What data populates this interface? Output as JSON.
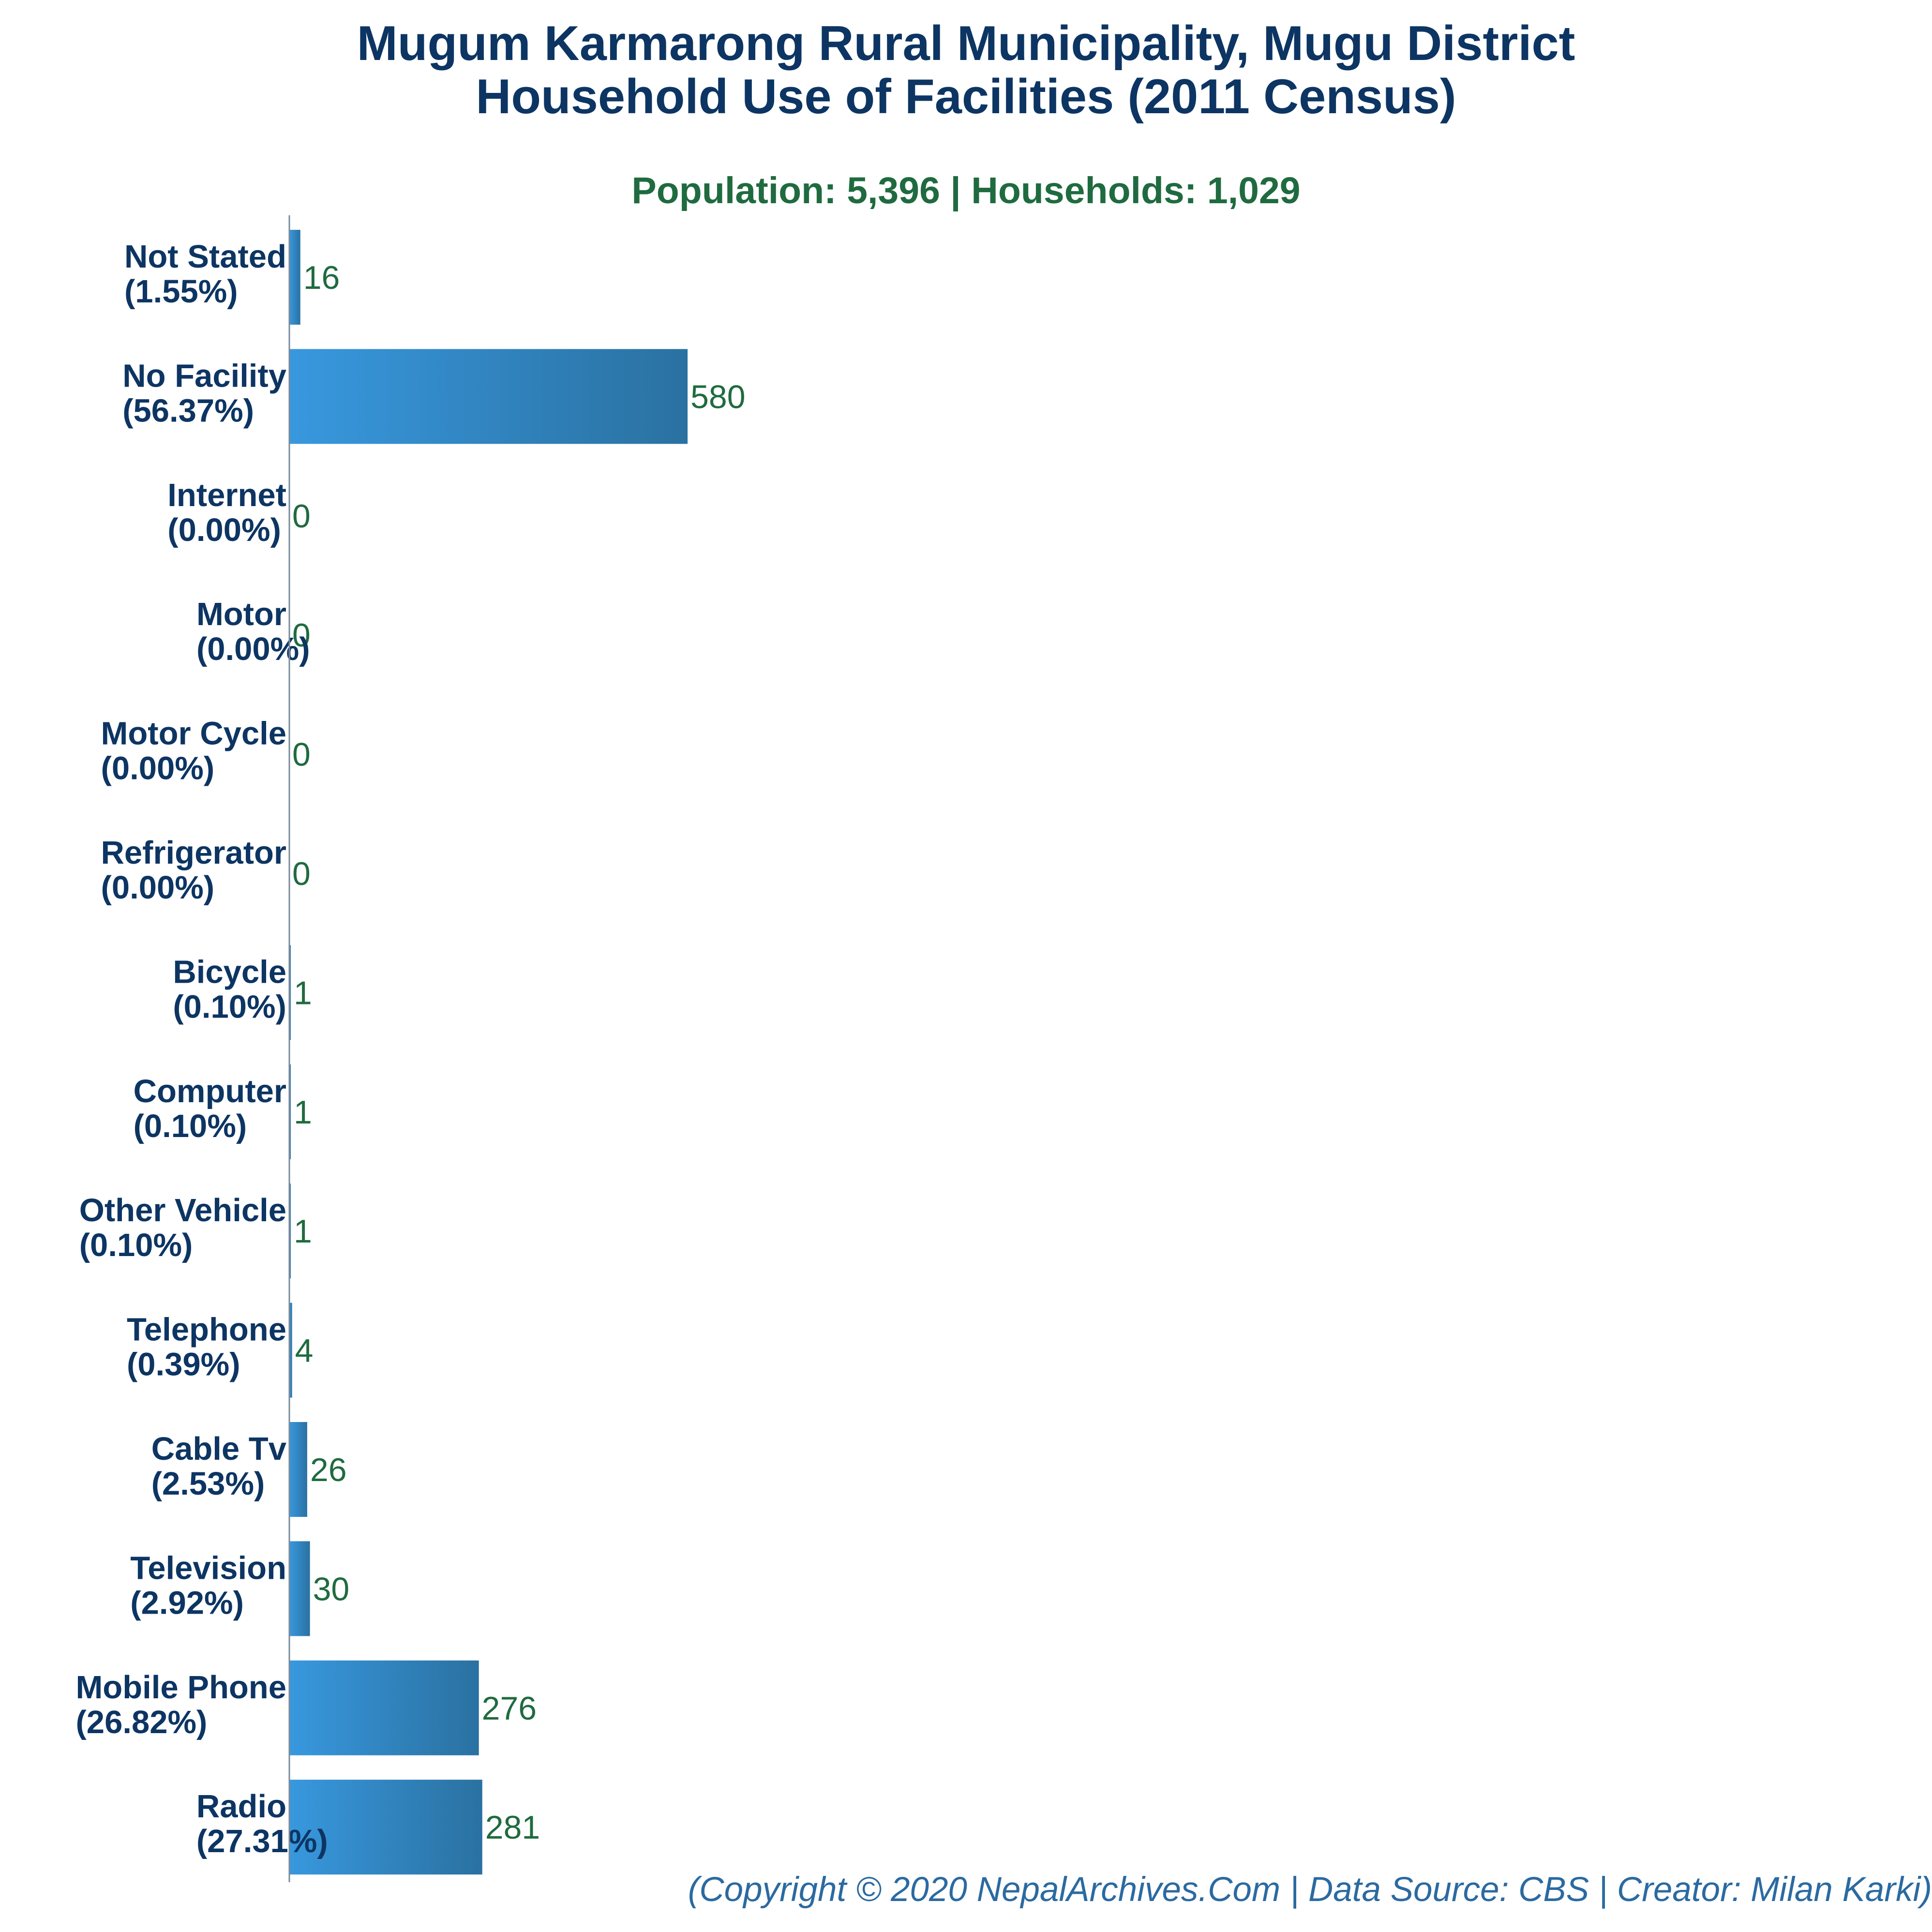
{
  "title_line1": "Mugum Karmarong Rural Municipality, Mugu District",
  "title_line2": "Household Use of Facilities (2011 Census)",
  "subtitle": "Population: 5,396 | Households: 1,029",
  "footer": "(Copyright © 2020 NepalArchives.Com | Data Source: CBS | Creator: Milan Karki)",
  "colors": {
    "title": "#0d3563",
    "subtitle": "#1f6b3f",
    "value_label": "#1f6b3f",
    "bar_light": "#3898de",
    "bar_dark": "#2a71a1",
    "footer": "#2b6aa1"
  },
  "chart_data": {
    "type": "bar",
    "orientation": "horizontal",
    "categories": [
      "Not Stated",
      "No Facility",
      "Internet",
      "Motor",
      "Motor Cycle",
      "Refrigerator",
      "Bicycle",
      "Computer",
      "Other Vehicle",
      "Telephone",
      "Cable Tv",
      "Television",
      "Mobile Phone",
      "Radio"
    ],
    "percent_labels": [
      "(1.55%)",
      "(56.37%)",
      "(0.00%)",
      "(0.00%)",
      "(0.00%)",
      "(0.00%)",
      "(0.10%)",
      "(0.10%)",
      "(0.10%)",
      "(0.39%)",
      "(2.53%)",
      "(2.92%)",
      "(26.82%)",
      "(27.31%)"
    ],
    "values": [
      16,
      580,
      0,
      0,
      0,
      0,
      1,
      1,
      1,
      4,
      26,
      30,
      276,
      281
    ],
    "xlim": [
      0,
      2350
    ],
    "grid": false,
    "legend": "none"
  }
}
